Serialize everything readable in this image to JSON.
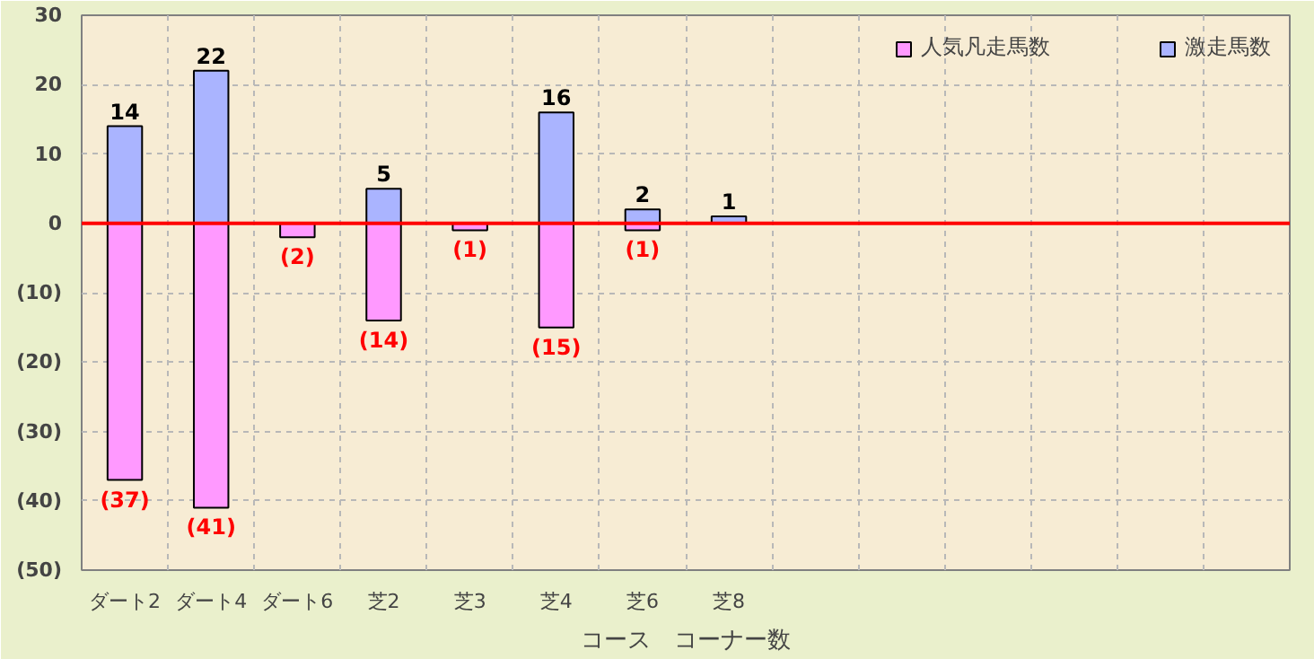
{
  "chart_data": {
    "type": "bar",
    "stacked": true,
    "xlabel": "コース　コーナー数",
    "categories": [
      "ダート2",
      "ダート4",
      "ダート6",
      "芝2",
      "芝3",
      "芝4",
      "芝6",
      "芝8",
      null,
      null,
      null,
      null,
      null,
      null
    ],
    "series": [
      {
        "name": "人気凡走馬数",
        "color": "#ff99ff",
        "values": [
          -37,
          -41,
          -2,
          -14,
          -1,
          -15,
          -1,
          null,
          null,
          null,
          null,
          null,
          null,
          null
        ],
        "value_labels": [
          "(37)",
          "(41)",
          "(2)",
          "(14)",
          "(1)",
          "(15)",
          "(1)",
          null,
          null,
          null,
          null,
          null,
          null,
          null
        ]
      },
      {
        "name": "激走馬数",
        "color": "#aab4ff",
        "values": [
          14,
          22,
          null,
          5,
          null,
          16,
          2,
          1,
          null,
          null,
          null,
          null,
          null,
          null
        ],
        "value_labels": [
          "14",
          "22",
          null,
          "5",
          null,
          "16",
          "2",
          "1",
          null,
          null,
          null,
          null,
          null,
          null
        ]
      }
    ],
    "ylim": [
      -50,
      30
    ],
    "yticks": [
      {
        "value": -50,
        "label": "(50)"
      },
      {
        "value": -40,
        "label": "(40)"
      },
      {
        "value": -30,
        "label": "(30)"
      },
      {
        "value": -20,
        "label": "(20)"
      },
      {
        "value": -10,
        "label": "(10)"
      },
      0,
      10,
      20,
      30
    ],
    "ref_lines": [
      {
        "axis": "y",
        "value": 0,
        "color": "#ff0000"
      }
    ],
    "grid": true,
    "legend": "top right"
  }
}
